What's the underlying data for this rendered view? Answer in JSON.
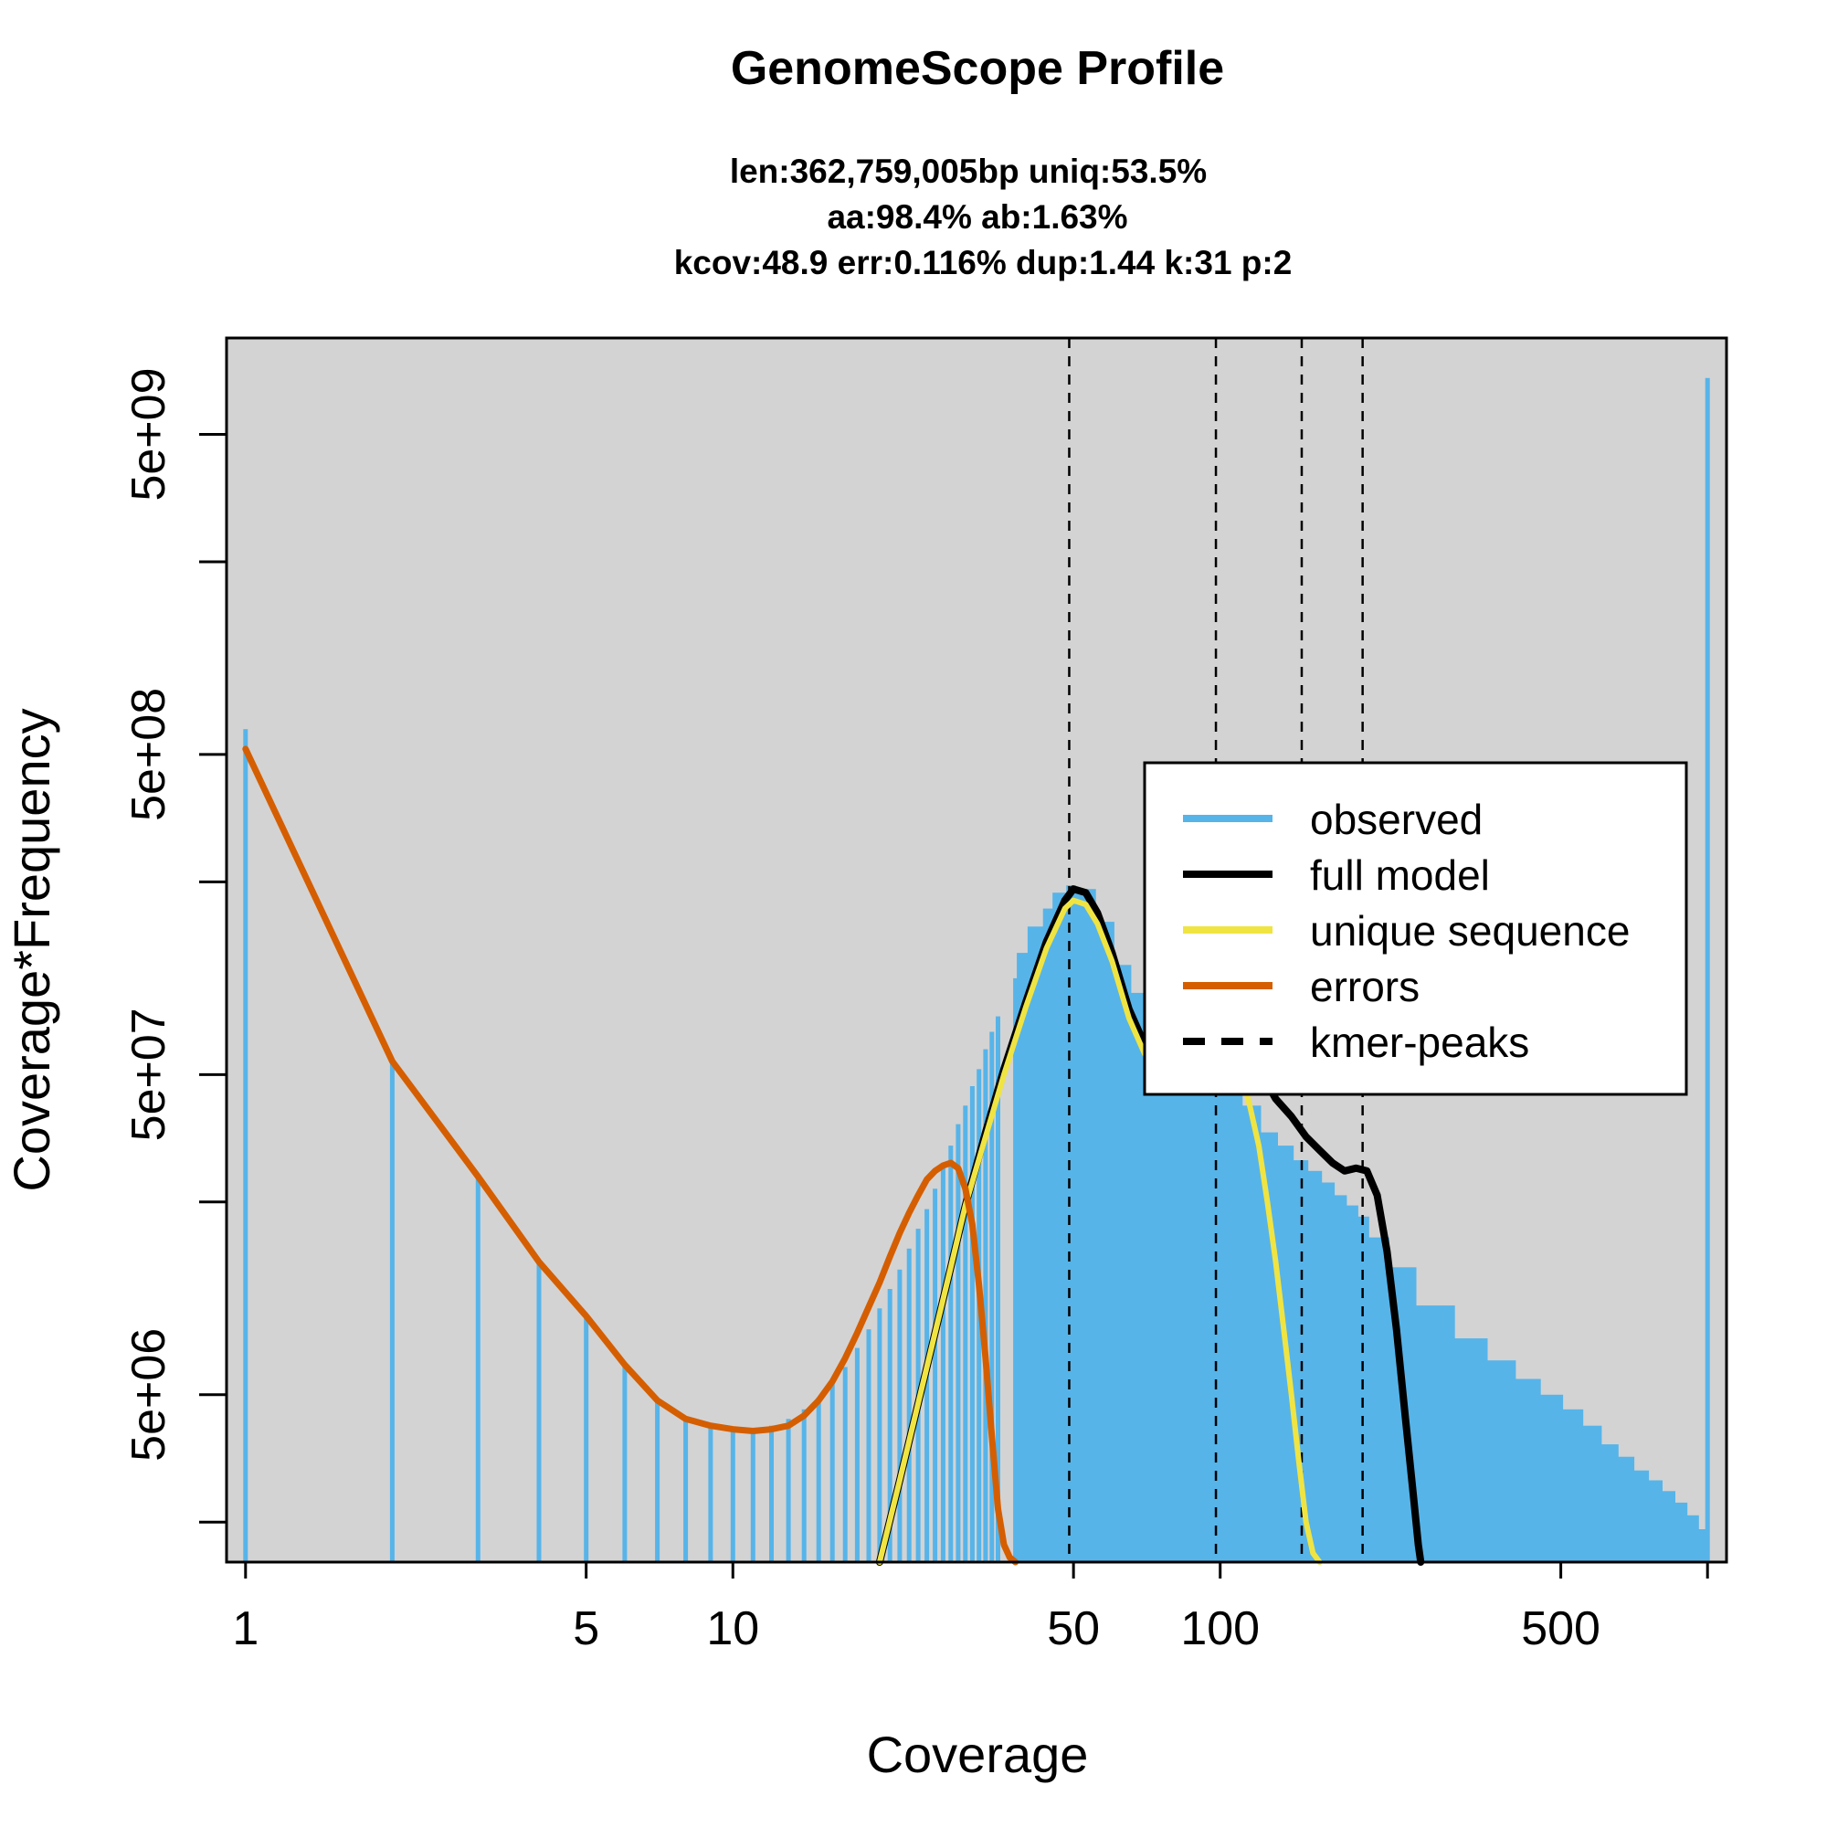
{
  "chart_data": {
    "type": "line",
    "title": "GenomeScope Profile",
    "subtitle_lines": [
      "len:362,759,005bp uniq:53.5%",
      "aa:98.4% ab:1.63%",
      "kcov:48.9 err:0.116%  dup:1.44  k:31 p:2"
    ],
    "xlabel": "Coverage",
    "ylabel": "Coverage*Frequency",
    "x_scale": "log",
    "y_scale": "log",
    "xlim": [
      1,
      1000
    ],
    "ylim": [
      1500000,
      10000000000
    ],
    "x_ticks": [
      1,
      5,
      10,
      50,
      100,
      500,
      1000
    ],
    "x_tick_labels": [
      "1",
      "5",
      "10",
      "50",
      "100",
      "500",
      ""
    ],
    "y_major_ticks": [
      5000000,
      50000000,
      500000000,
      5000000000
    ],
    "y_major_tick_labels": [
      "5e+06",
      "5e+07",
      "5e+08",
      "5e+09"
    ],
    "y_minor_ticks": [
      2000000,
      20000000,
      200000000,
      2000000000
    ],
    "background": "#d3d3d3",
    "legend_position": "top-right",
    "legend": [
      {
        "label": "observed",
        "color": "#56b4e9",
        "style": "solid"
      },
      {
        "label": "full model",
        "color": "#000000",
        "style": "solid"
      },
      {
        "label": "unique sequence",
        "color": "#f0e442",
        "style": "solid"
      },
      {
        "label": "errors",
        "color": "#d55e00",
        "style": "solid"
      },
      {
        "label": "kmer-peaks",
        "color": "#000000",
        "style": "dashed"
      }
    ],
    "kmer_peaks": [
      49,
      98,
      147,
      196
    ],
    "series": [
      {
        "name": "observed",
        "color": "#56b4e9",
        "kind": "histogram",
        "x": [
          1,
          2,
          3,
          4,
          5,
          6,
          7,
          8,
          9,
          10,
          11,
          12,
          13,
          14,
          15,
          16,
          17,
          18,
          19,
          20,
          21,
          22,
          23,
          24,
          25,
          26,
          27,
          28,
          29,
          30,
          31,
          32,
          33,
          34,
          35,
          38,
          40,
          43,
          45,
          48,
          50,
          55,
          60,
          65,
          70,
          75,
          80,
          90,
          100,
          110,
          120,
          130,
          140,
          150,
          160,
          170,
          180,
          190,
          200,
          220,
          250,
          300,
          350,
          400,
          450,
          500,
          550,
          600,
          650,
          700,
          750,
          800,
          850,
          900,
          950,
          999,
          1000
        ],
        "y": [
          600000000,
          55000000,
          24000000,
          13000000,
          8800000,
          6200000,
          4800000,
          4200000,
          4000000,
          3900000,
          3900000,
          4000000,
          4200000,
          4500000,
          4900000,
          5400000,
          6100000,
          7000000,
          8000000,
          9300000,
          10700000,
          12300000,
          14300000,
          16500000,
          19000000,
          22000000,
          26000000,
          30000000,
          35000000,
          40000000,
          46000000,
          52000000,
          60000000,
          68000000,
          76000000,
          100000000,
          120000000,
          145000000,
          165000000,
          185000000,
          195000000,
          190000000,
          150000000,
          110000000,
          90000000,
          85000000,
          88000000,
          90000000,
          75000000,
          55000000,
          40000000,
          33000000,
          30000000,
          27000000,
          25000000,
          23000000,
          21000000,
          19500000,
          18000000,
          15500000,
          12500000,
          9500000,
          7500000,
          6400000,
          5600000,
          5000000,
          4500000,
          4000000,
          3500000,
          3200000,
          2900000,
          2700000,
          2500000,
          2300000,
          2100000,
          1900000,
          7500000000
        ]
      },
      {
        "name": "full model",
        "color": "#000000",
        "x": [
          20,
          22,
          24,
          26,
          28,
          30,
          33,
          36,
          40,
          44,
          48,
          50,
          53,
          56,
          60,
          65,
          70,
          75,
          80,
          85,
          90,
          100,
          110,
          120,
          130,
          140,
          150,
          160,
          170,
          180,
          190,
          200,
          210,
          220,
          230,
          240,
          250,
          255,
          258
        ],
        "y": [
          1500000,
          2700000,
          4700000,
          7800000,
          12500000,
          19500000,
          33000000,
          52000000,
          85000000,
          130000000,
          175000000,
          190000000,
          185000000,
          160000000,
          120000000,
          80000000,
          62000000,
          60000000,
          65000000,
          72000000,
          78000000,
          80000000,
          68000000,
          52000000,
          42000000,
          37000000,
          32000000,
          29000000,
          26500000,
          25000000,
          25500000,
          25000000,
          21000000,
          14000000,
          8000000,
          4200000,
          2300000,
          1700000,
          1500000
        ]
      },
      {
        "name": "unique sequence",
        "color": "#f0e442",
        "x": [
          20,
          22,
          24,
          26,
          28,
          30,
          33,
          36,
          40,
          44,
          48,
          50,
          53,
          56,
          60,
          65,
          70,
          75,
          80,
          85,
          90,
          100,
          105,
          110,
          115,
          120,
          125,
          130,
          135,
          140,
          145,
          150,
          155,
          160
        ],
        "y": [
          1500000,
          2700000,
          4700000,
          7800000,
          12500000,
          19500000,
          32000000,
          50000000,
          82000000,
          124000000,
          165000000,
          175000000,
          170000000,
          148000000,
          113000000,
          75000000,
          58000000,
          55000000,
          60000000,
          65000000,
          70000000,
          68000000,
          60000000,
          52000000,
          40000000,
          30000000,
          20000000,
          13000000,
          8000000,
          5000000,
          3100000,
          2000000,
          1600000,
          1500000
        ]
      },
      {
        "name": "errors",
        "color": "#d55e00",
        "x": [
          1,
          2,
          3,
          4,
          5,
          6,
          7,
          8,
          9,
          10,
          11,
          12,
          13,
          14,
          15,
          16,
          17,
          18,
          19,
          20,
          21,
          22,
          23,
          24,
          25,
          26,
          27,
          28,
          29,
          30,
          31,
          32,
          33,
          34,
          35,
          36,
          37,
          38
        ],
        "y": [
          520000000,
          55000000,
          24000000,
          13000000,
          8800000,
          6200000,
          4800000,
          4200000,
          4000000,
          3900000,
          3850000,
          3900000,
          4000000,
          4300000,
          4800000,
          5500000,
          6500000,
          7800000,
          9400000,
          11200000,
          13500000,
          16000000,
          18500000,
          21000000,
          23500000,
          25000000,
          26000000,
          26500000,
          25500000,
          22000000,
          17000000,
          11000000,
          6500000,
          3700000,
          2200000,
          1700000,
          1550000,
          1500000
        ]
      }
    ]
  }
}
